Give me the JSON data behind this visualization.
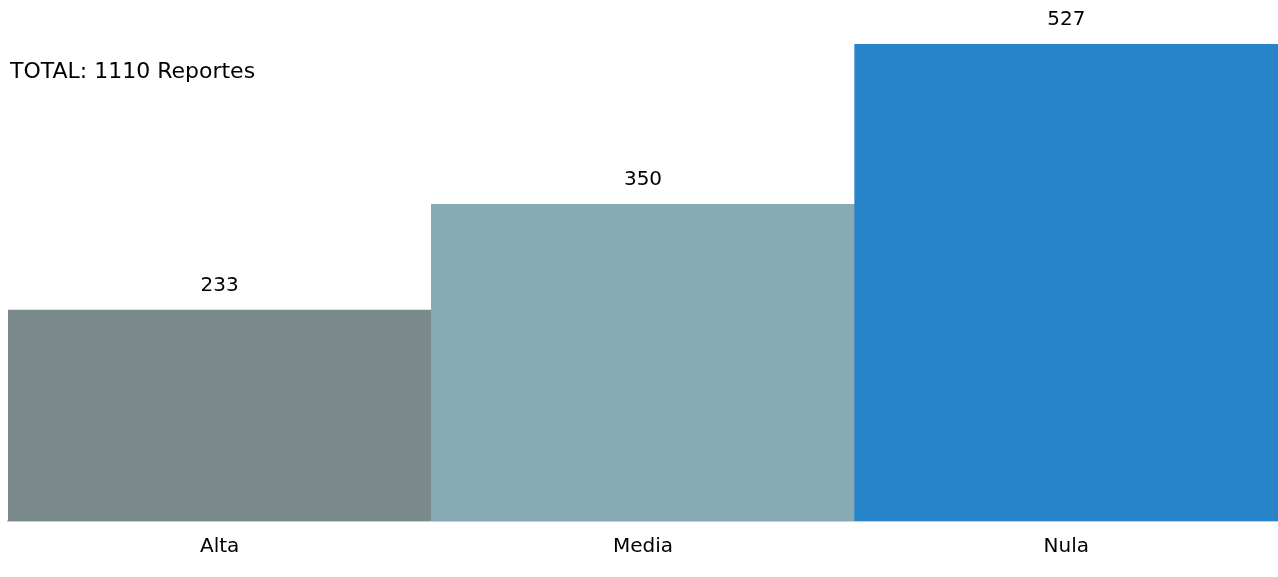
{
  "chart_data": {
    "type": "bar",
    "categories": [
      "Alta",
      "Media",
      "Nula"
    ],
    "values": [
      233,
      350,
      527
    ],
    "colors": [
      "#7a8a8c",
      "#86abb5",
      "#2884c8"
    ],
    "data_labels": true,
    "grid": false,
    "legend": false,
    "tick_labels": "x",
    "annotations": [
      "TOTAL: 1110 Reportes"
    ]
  }
}
